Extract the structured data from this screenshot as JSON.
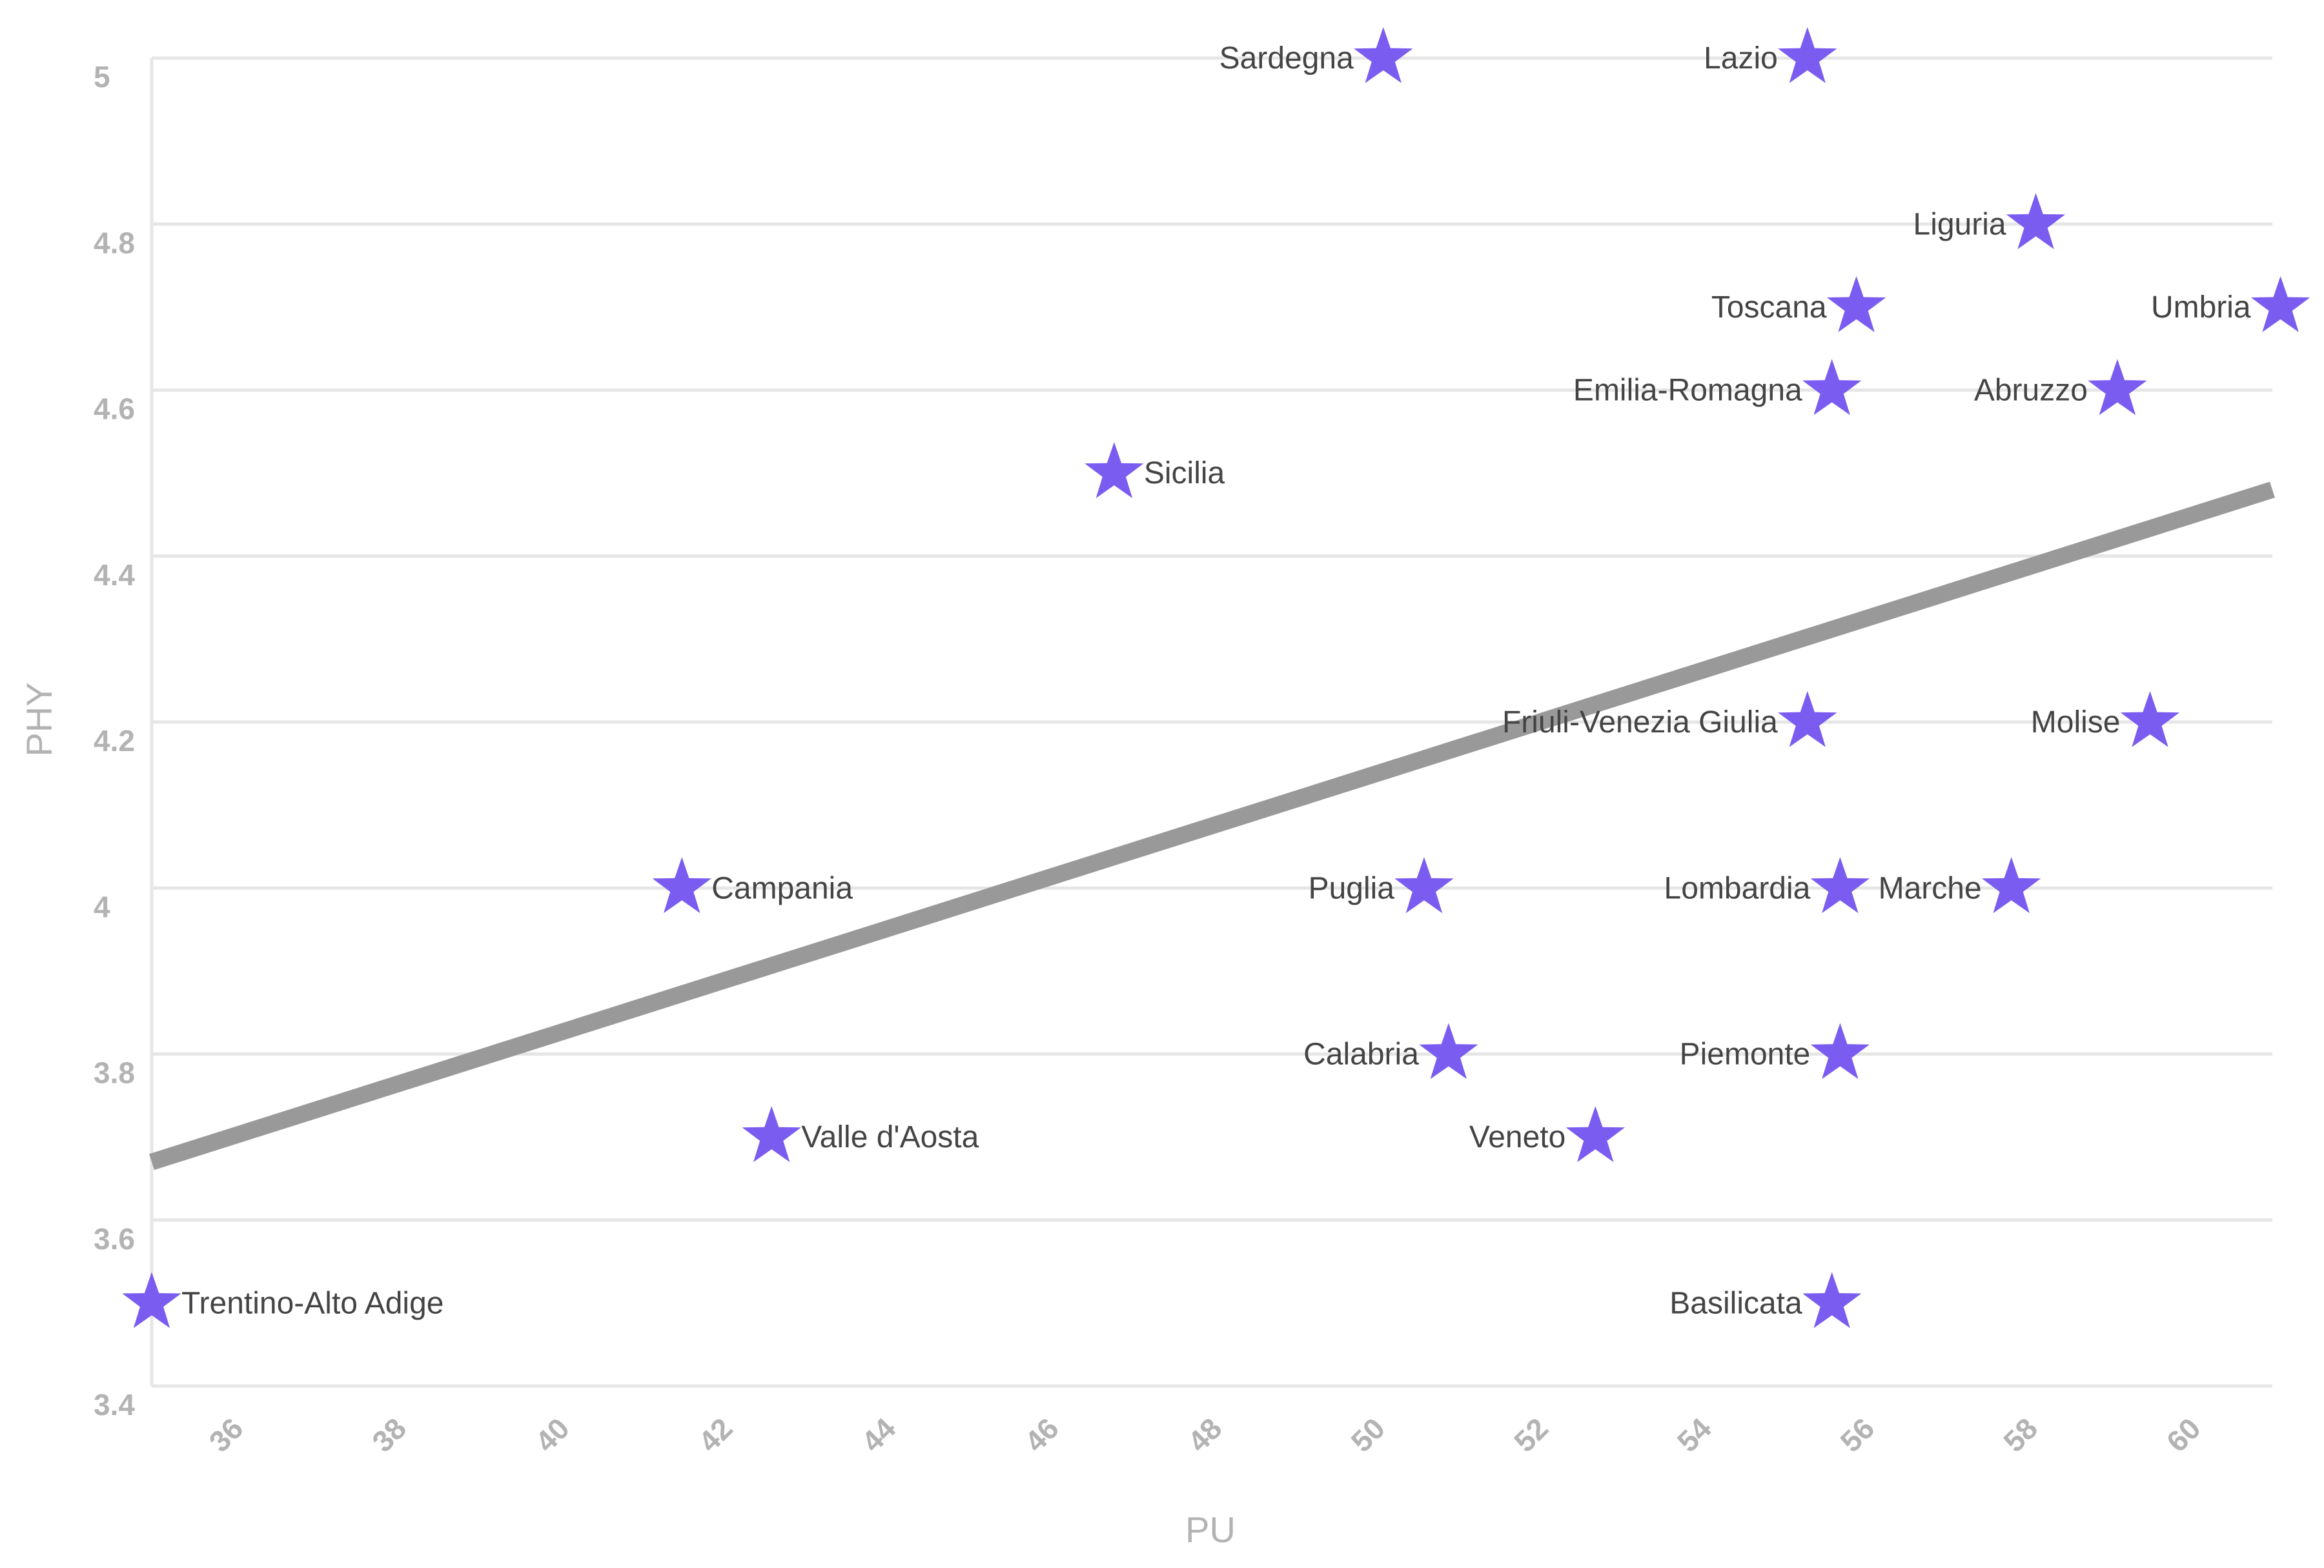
{
  "chart_data": {
    "type": "scatter",
    "xlabel": "PU",
    "ylabel": "PHY",
    "xlim": [
      35,
      61
    ],
    "ylim": [
      3.4,
      5
    ],
    "x_ticks": [
      "36",
      "38",
      "40",
      "42",
      "44",
      "46",
      "48",
      "50",
      "52",
      "54",
      "56",
      "58",
      "60"
    ],
    "y_ticks": [
      "3.4",
      "3.6",
      "3.8",
      "4",
      "4.2",
      "4.4",
      "4.6",
      "4.8",
      "5"
    ],
    "marker": "star-icon",
    "colors": {
      "marker": "#7b5cf0",
      "trend": "#999999",
      "grid": "#e6e6e6",
      "tick": "#b3b3b3",
      "label": "#444444"
    },
    "trend_line": {
      "x": [
        35,
        61
      ],
      "y": [
        3.67,
        4.48
      ]
    },
    "points": [
      {
        "name": "Sardegna",
        "x": 50.1,
        "y": 5.0,
        "label_side": "left"
      },
      {
        "name": "Lazio",
        "x": 55.3,
        "y": 5.0,
        "label_side": "left"
      },
      {
        "name": "Liguria",
        "x": 58.1,
        "y": 4.8,
        "label_side": "left"
      },
      {
        "name": "Toscana",
        "x": 55.9,
        "y": 4.7,
        "label_side": "left"
      },
      {
        "name": "Umbria",
        "x": 61.1,
        "y": 4.7,
        "label_side": "left"
      },
      {
        "name": "Emilia-Romagna",
        "x": 55.6,
        "y": 4.6,
        "label_side": "left"
      },
      {
        "name": "Abruzzo",
        "x": 59.1,
        "y": 4.6,
        "label_side": "left"
      },
      {
        "name": "Sicilia",
        "x": 46.8,
        "y": 4.5,
        "label_side": "right"
      },
      {
        "name": "Friuli-Venezia Giulia",
        "x": 55.3,
        "y": 4.2,
        "label_side": "left"
      },
      {
        "name": "Molise",
        "x": 59.5,
        "y": 4.2,
        "label_side": "left"
      },
      {
        "name": "Campania",
        "x": 41.5,
        "y": 4.0,
        "label_side": "right"
      },
      {
        "name": "Puglia",
        "x": 50.6,
        "y": 4.0,
        "label_side": "left"
      },
      {
        "name": "Lombardia",
        "x": 55.7,
        "y": 4.0,
        "label_side": "left"
      },
      {
        "name": "Marche",
        "x": 57.8,
        "y": 4.0,
        "label_side": "left"
      },
      {
        "name": "Calabria",
        "x": 50.9,
        "y": 3.8,
        "label_side": "left"
      },
      {
        "name": "Piemonte",
        "x": 55.7,
        "y": 3.8,
        "label_side": "left"
      },
      {
        "name": "Valle d'Aosta",
        "x": 42.6,
        "y": 3.7,
        "label_side": "right"
      },
      {
        "name": "Veneto",
        "x": 52.7,
        "y": 3.7,
        "label_side": "left"
      },
      {
        "name": "Trentino-Alto Adige",
        "x": 35.0,
        "y": 3.5,
        "label_side": "right"
      },
      {
        "name": "Basilicata",
        "x": 55.6,
        "y": 3.5,
        "label_side": "left"
      }
    ]
  }
}
